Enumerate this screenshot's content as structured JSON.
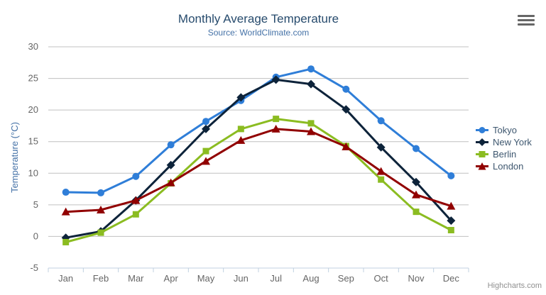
{
  "chart_data": {
    "type": "line",
    "title": "Monthly Average Temperature",
    "subtitle": "Source: WorldClimate.com",
    "xlabel": "",
    "ylabel": "Temperature (°C)",
    "categories": [
      "Jan",
      "Feb",
      "Mar",
      "Apr",
      "May",
      "Jun",
      "Jul",
      "Aug",
      "Sep",
      "Oct",
      "Nov",
      "Dec"
    ],
    "ylim": [
      -5,
      30
    ],
    "yticks": [
      -5,
      0,
      5,
      10,
      15,
      20,
      25,
      30
    ],
    "grid": true,
    "legend_position": "right",
    "series": [
      {
        "name": "Tokyo",
        "color": "#2f7ed8",
        "marker": "circle",
        "values": [
          7.0,
          6.9,
          9.5,
          14.5,
          18.2,
          21.5,
          25.2,
          26.5,
          23.3,
          18.3,
          13.9,
          9.6
        ]
      },
      {
        "name": "New York",
        "color": "#0d233a",
        "marker": "diamond",
        "values": [
          -0.2,
          0.8,
          5.7,
          11.3,
          17.0,
          22.0,
          24.8,
          24.1,
          20.1,
          14.1,
          8.6,
          2.5
        ]
      },
      {
        "name": "Berlin",
        "color": "#8bbc21",
        "marker": "square",
        "values": [
          -0.9,
          0.6,
          3.5,
          8.4,
          13.5,
          17.0,
          18.6,
          17.9,
          14.3,
          9.0,
          3.9,
          1.0
        ]
      },
      {
        "name": "London",
        "color": "#910000",
        "marker": "triangle",
        "values": [
          3.9,
          4.2,
          5.7,
          8.5,
          11.9,
          15.2,
          17.0,
          16.6,
          14.2,
          10.3,
          6.6,
          4.8
        ]
      }
    ],
    "colors": {
      "grid_line": "#c0c0c0",
      "axis_line": "#c0d0e0",
      "axis_label": "#666666",
      "title": "#274b6d",
      "subtitle": "#4572a7",
      "axis_title": "#4572a7",
      "legend_text": "#3e576f"
    }
  },
  "export_menu": {
    "icon": "hamburger-menu"
  },
  "credits": {
    "label": "Highcharts.com"
  }
}
